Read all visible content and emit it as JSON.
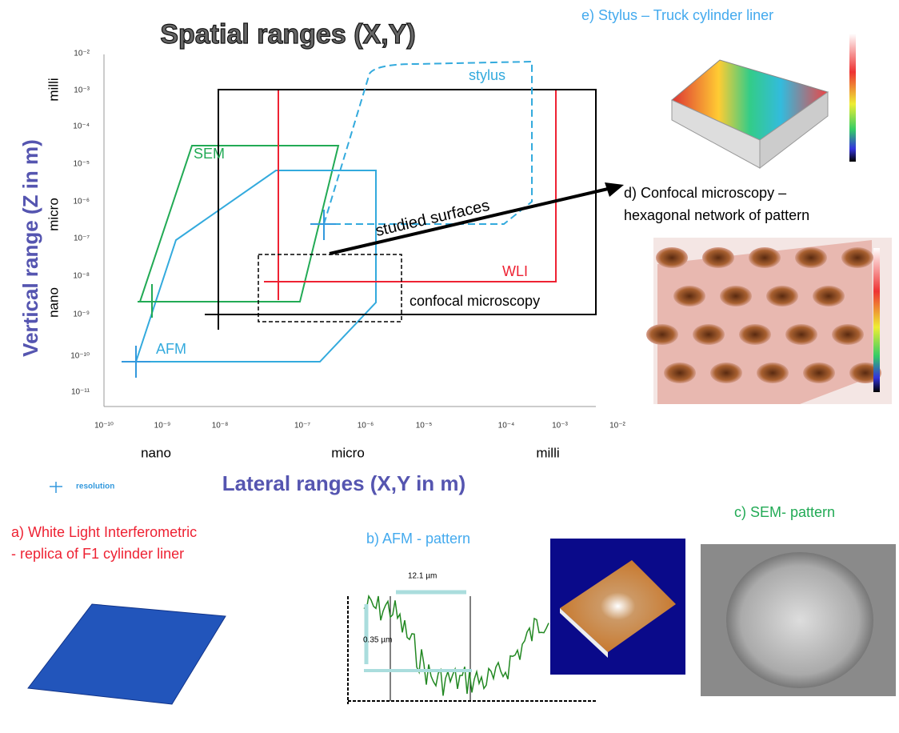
{
  "title": "Spatial ranges (X,Y)",
  "y_axis": {
    "label": "Vertical range  (Z in m)",
    "ticks": [
      "10⁻²",
      "10⁻³",
      "10⁻⁴",
      "10⁻⁵",
      "10⁻⁶",
      "10⁻⁷",
      "10⁻⁸",
      "10⁻⁹",
      "10⁻¹⁰",
      "10⁻¹¹"
    ],
    "scales": [
      "milli",
      "micro",
      "nano"
    ]
  },
  "x_axis": {
    "label": "Lateral ranges (X,Y in m)",
    "ticks": [
      "10⁻¹⁰",
      "10⁻⁹",
      "10⁻⁸",
      "10⁻⁷",
      "10⁻⁶",
      "10⁻⁵",
      "10⁻⁴",
      "10⁻³",
      "10⁻²"
    ],
    "scales": [
      "nano",
      "micro",
      "milli"
    ]
  },
  "legend": "resolution",
  "regions": {
    "stylus": "stylus",
    "sem": "SEM",
    "wli": "WLI",
    "afm": "AFM",
    "confocal": "confocal microscopy"
  },
  "arrow_label": "studied surfaces",
  "panels": {
    "e": "e) Stylus – Truck cylinder liner",
    "d": [
      "d) Confocal microscopy –",
      "hexagonal network of pattern"
    ],
    "a": [
      "a) White Light Interferometric",
      "- replica of F1 cylinder liner"
    ],
    "b": {
      "title": "b) AFM - pattern",
      "width": "12.1 µm",
      "depth": "0.35 µm"
    },
    "c": "c) SEM- pattern"
  }
}
